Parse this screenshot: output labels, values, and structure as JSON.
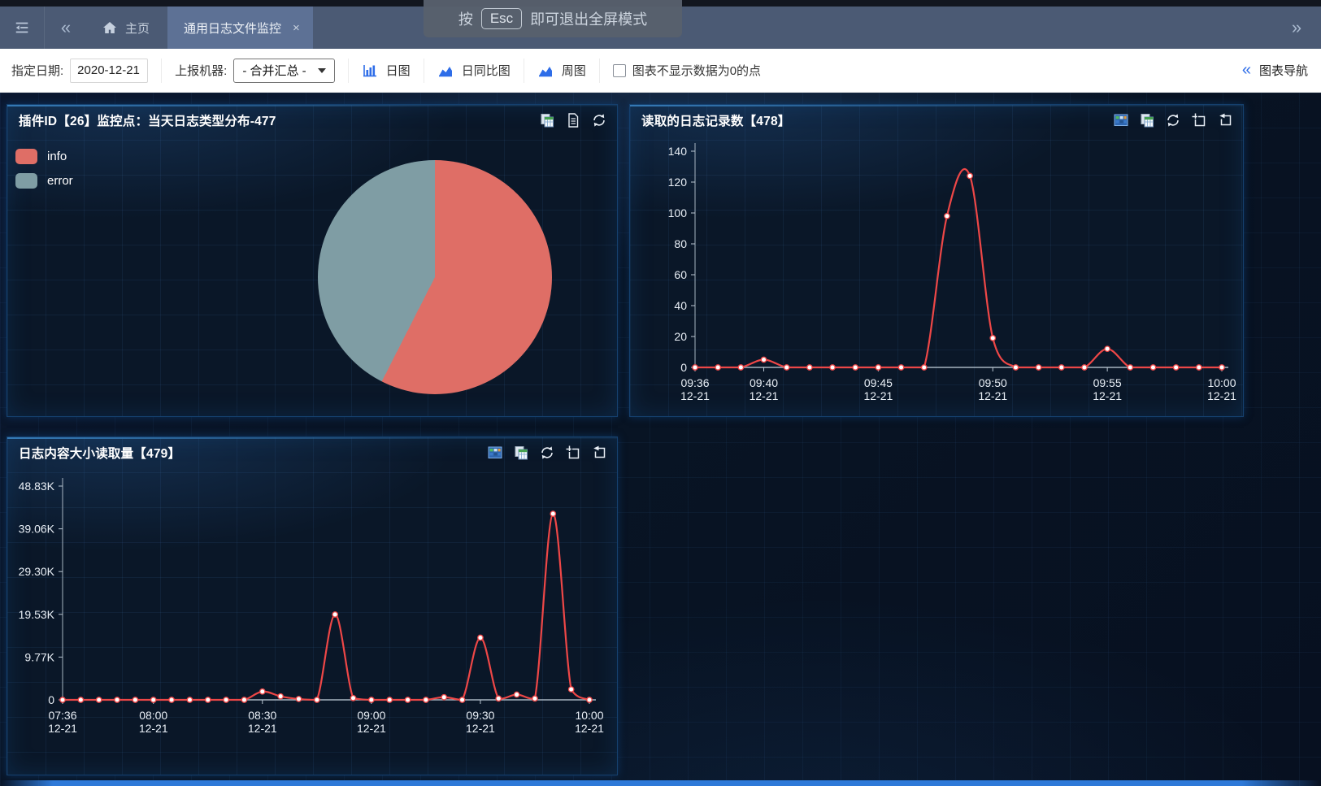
{
  "topbar": {
    "collapse_arrow": "«",
    "home_label": "主页",
    "tab_label": "通用日志文件监控",
    "tab_close": "×",
    "expand_arrow": "»"
  },
  "fullscreen_notice": {
    "prefix": "按",
    "key_label": "Esc",
    "suffix": "即可退出全屏模式"
  },
  "toolbar": {
    "date_label": "指定日期:",
    "date_value": "2020-12-21",
    "machine_label": "上报机器:",
    "machine_value": "- 合并汇总 -",
    "buttons": [
      {
        "label": "日图"
      },
      {
        "label": "日同比图"
      },
      {
        "label": "周图"
      }
    ],
    "checkbox_label": "图表不显示数据为0的点",
    "checkbox_checked": false,
    "nav_arrow": "«",
    "nav_label": "图表导航"
  },
  "colors": {
    "accent_blue": "#2e6de8",
    "line_red": "#ee4747",
    "pie_info": "#df6e66",
    "pie_error": "#7f9da4"
  },
  "chart_data": [
    {
      "type": "pie",
      "panel_title": "插件ID【26】监控点：当天日志类型分布-477",
      "legend_position": "top-left",
      "total": 477,
      "slices": [
        {
          "label": "info",
          "color": "#df6e66",
          "percent": 57.5,
          "value_estimate": 274
        },
        {
          "label": "error",
          "color": "#7f9da4",
          "percent": 42.5,
          "value_estimate": 203
        }
      ]
    },
    {
      "type": "line",
      "panel_title": "读取的日志记录数【478】",
      "x": [
        "09:36",
        "09:37",
        "09:38",
        "09:40",
        "09:41",
        "09:42",
        "09:43",
        "09:44",
        "09:45",
        "09:46",
        "09:47",
        "09:48",
        "09:49",
        "09:50",
        "09:51",
        "09:52",
        "09:53",
        "09:54",
        "09:55",
        "09:56",
        "09:57",
        "09:58",
        "09:59",
        "10:00"
      ],
      "x_sub_label": "12-21",
      "x_label_indices": [
        0,
        3,
        8,
        13,
        18,
        23
      ],
      "series": [
        {
          "name": "读取的日志记录数",
          "color": "#ee4747",
          "values": [
            0,
            0,
            0,
            5,
            0,
            0,
            0,
            0,
            0,
            0,
            0,
            98,
            124,
            19,
            0,
            0,
            0,
            0,
            12,
            0,
            0,
            0,
            0,
            0
          ]
        }
      ],
      "ylim": [
        0,
        140
      ],
      "y_ticks": [
        0,
        20,
        40,
        60,
        80,
        100,
        120,
        140
      ],
      "y_tick_labels": [
        "0",
        "20",
        "40",
        "60",
        "80",
        "100",
        "120",
        "140"
      ],
      "grid": false,
      "legend_position": "none"
    },
    {
      "type": "line",
      "panel_title": "日志内容大小读取量【479】",
      "x": [
        "07:36",
        "07:41",
        "07:46",
        "07:50",
        "07:55",
        "08:00",
        "08:05",
        "08:10",
        "08:15",
        "08:20",
        "08:25",
        "08:30",
        "08:35",
        "08:40",
        "08:45",
        "08:50",
        "08:55",
        "09:00",
        "09:05",
        "09:10",
        "09:15",
        "09:20",
        "09:25",
        "09:30",
        "09:35",
        "09:40",
        "09:45",
        "09:50",
        "09:55",
        "10:00"
      ],
      "x_sub_label": "12-21",
      "x_label_indices": [
        0,
        5,
        11,
        17,
        23,
        29
      ],
      "series": [
        {
          "name": "日志内容大小读取量",
          "color": "#ee4747",
          "values": [
            0,
            0,
            0,
            0,
            0,
            0,
            0,
            0,
            0,
            0,
            0,
            1900,
            800,
            200,
            0,
            19500,
            400,
            0,
            0,
            0,
            0,
            600,
            0,
            14200,
            300,
            1200,
            300,
            42500,
            2400,
            0
          ]
        }
      ],
      "ylim": [
        0,
        48830
      ],
      "y_ticks": [
        0,
        9770,
        19530,
        29300,
        39060,
        48830
      ],
      "y_tick_labels": [
        "0",
        "9.77K",
        "19.53K",
        "29.30K",
        "39.06K",
        "48.83K"
      ],
      "grid": false,
      "legend_position": "none"
    }
  ]
}
